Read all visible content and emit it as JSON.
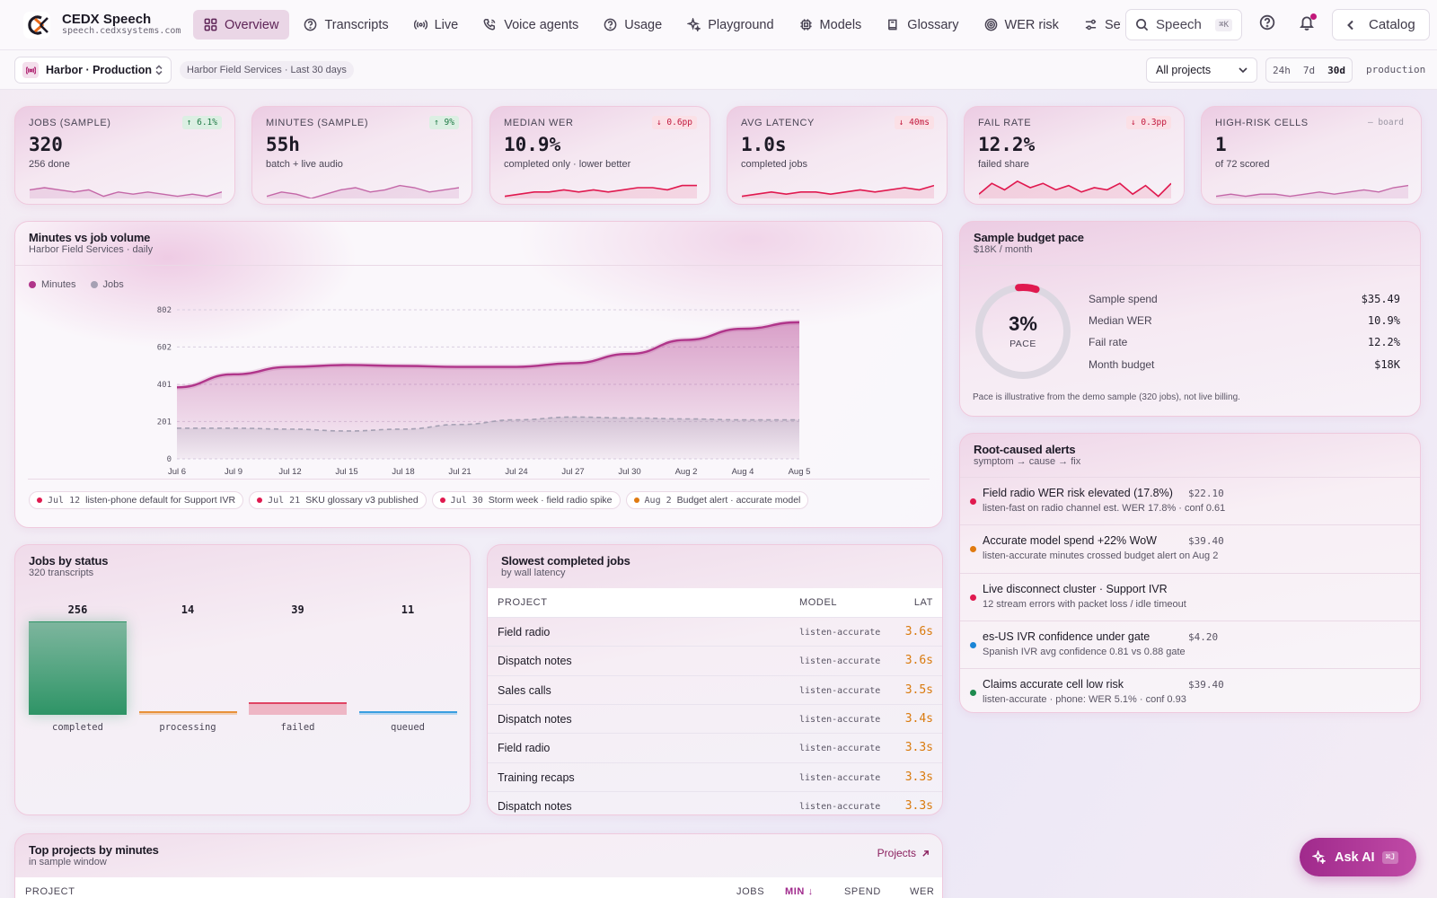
{
  "app": {
    "title": "CEDX Speech",
    "domain": "speech.cedxsystems.com"
  },
  "nav": {
    "tabs": [
      {
        "label": "Overview",
        "icon": "grid-icon",
        "active": true
      },
      {
        "label": "Transcripts",
        "icon": "question-circle-icon"
      },
      {
        "label": "Live",
        "icon": "broadcast-icon"
      },
      {
        "label": "Voice agents",
        "icon": "phone-icon"
      },
      {
        "label": "Usage",
        "icon": "question-circle-icon"
      },
      {
        "label": "Playground",
        "icon": "sparkle-icon"
      },
      {
        "label": "Models",
        "icon": "chip-icon"
      },
      {
        "label": "Glossary",
        "icon": "book-icon"
      },
      {
        "label": "WER risk",
        "icon": "target-icon"
      },
      {
        "label": "Settings",
        "icon": "sliders-icon"
      }
    ],
    "search": {
      "label": "Speech",
      "shortcut": "⌘K"
    },
    "catalog_label": "Catalog"
  },
  "subbar": {
    "org": "Harbor · Production",
    "scope": "Harbor Field Services · Last 30 days",
    "project_select": "All projects",
    "ranges": [
      "24h",
      "7d",
      "30d"
    ],
    "selected_range": "30d",
    "env": "production"
  },
  "kpis": [
    {
      "label": "Jobs (sample)",
      "value": "320",
      "sub": "256 done",
      "delta": "↑ 6.1%",
      "tone": "green"
    },
    {
      "label": "Minutes (sample)",
      "value": "55h",
      "sub": "batch + live audio",
      "delta": "↑ 9%",
      "tone": "green"
    },
    {
      "label": "Median WER",
      "value": "10.9%",
      "sub": "completed only · lower better",
      "delta": "↓ 0.6pp",
      "tone": "red"
    },
    {
      "label": "Avg latency",
      "value": "1.0s",
      "sub": "completed jobs",
      "delta": "↓ 40ms",
      "tone": "red"
    },
    {
      "label": "Fail rate",
      "value": "12.2%",
      "sub": "failed share",
      "delta": "↓ 0.3pp",
      "tone": "red"
    },
    {
      "label": "High-risk cells",
      "value": "1",
      "sub": "of 72 scored",
      "delta": "— board",
      "tone": "gray"
    }
  ],
  "minutes_chart": {
    "title": "Minutes vs job volume",
    "subtitle": "Harbor Field Services · daily",
    "legend": [
      "Minutes",
      "Jobs"
    ],
    "colors": {
      "minutes": "#b0358a",
      "jobs": "#a5a0b3"
    },
    "chart_data": {
      "type": "area",
      "x": [
        "Jul 6",
        "Jul 9",
        "Jul 12",
        "Jul 15",
        "Jul 18",
        "Jul 21",
        "Jul 24",
        "Jul 27",
        "Jul 30",
        "Aug 2",
        "Aug 4",
        "Aug 5"
      ],
      "y_ticks": [
        "0",
        "201",
        "401",
        "602",
        "802"
      ],
      "ylim": [
        0,
        802
      ],
      "series": [
        {
          "name": "Minutes",
          "values": [
            385,
            455,
            495,
            505,
            500,
            495,
            495,
            515,
            565,
            640,
            700,
            735
          ]
        },
        {
          "name": "Jobs",
          "values": [
            165,
            165,
            160,
            150,
            160,
            185,
            210,
            225,
            220,
            215,
            210,
            210
          ]
        }
      ]
    },
    "events": [
      {
        "date": "Jul 12",
        "text": "listen-phone default for Support IVR",
        "color": "#e0194f"
      },
      {
        "date": "Jul 21",
        "text": "SKU glossary v3 published",
        "color": "#e0194f"
      },
      {
        "date": "Jul 30",
        "text": "Storm week · field radio spike",
        "color": "#e0194f"
      },
      {
        "date": "Aug 2",
        "text": "Budget alert · accurate model",
        "color": "#e07a10"
      }
    ]
  },
  "budget": {
    "title": "Sample budget pace",
    "subtitle": "$18K / month",
    "pace_value": "3%",
    "pace_label": "PACE",
    "pace_fraction": 0.03,
    "rows": [
      {
        "label": "Sample spend",
        "value": "$35.49"
      },
      {
        "label": "Median WER",
        "value": "10.9%"
      },
      {
        "label": "Fail rate",
        "value": "12.2%"
      },
      {
        "label": "Month budget",
        "value": "$18K"
      }
    ],
    "note": "Pace is illustrative from the demo sample (320 jobs), not live billing."
  },
  "alerts": {
    "title": "Root-caused alerts",
    "subtitle": "symptom → cause → fix",
    "items": [
      {
        "title": "Field radio WER risk elevated (17.8%)",
        "cost": "$22.10",
        "sub": "listen-fast on radio channel est. WER 17.8% · conf 0.61",
        "color": "#e0194f"
      },
      {
        "title": "Accurate model spend +22% WoW",
        "cost": "$39.40",
        "sub": "listen-accurate minutes crossed budget alert on Aug 2",
        "color": "#e07a10"
      },
      {
        "title": "Live disconnect cluster · Support IVR",
        "cost": "",
        "sub": "12 stream errors with packet loss / idle timeout",
        "color": "#e0194f"
      },
      {
        "title": "es-US IVR confidence under gate",
        "cost": "$4.20",
        "sub": "Spanish IVR avg confidence 0.81 vs 0.88 gate",
        "color": "#1a85d6"
      },
      {
        "title": "Claims accurate cell low risk",
        "cost": "$39.40",
        "sub": "listen-accurate · phone: WER 5.1% · conf 0.93",
        "color": "#1e8a4f"
      }
    ]
  },
  "status": {
    "title": "Jobs by status",
    "subtitle": "320 transcripts",
    "chart_data": {
      "type": "bar",
      "categories": [
        "completed",
        "processing",
        "failed",
        "queued"
      ],
      "values": [
        256,
        14,
        39,
        11
      ],
      "colors": [
        "#2e9466",
        "#e8913a",
        "#e04464",
        "#3a9ee0"
      ]
    }
  },
  "slowest": {
    "title": "Slowest completed jobs",
    "subtitle": "by wall latency",
    "columns": [
      "PROJECT",
      "MODEL",
      "LAT"
    ],
    "rows": [
      {
        "project": "Field radio",
        "model": "listen-accurate",
        "lat": "3.6s"
      },
      {
        "project": "Dispatch notes",
        "model": "listen-accurate",
        "lat": "3.6s"
      },
      {
        "project": "Sales calls",
        "model": "listen-accurate",
        "lat": "3.5s"
      },
      {
        "project": "Dispatch notes",
        "model": "listen-accurate",
        "lat": "3.4s"
      },
      {
        "project": "Field radio",
        "model": "listen-accurate",
        "lat": "3.3s"
      },
      {
        "project": "Training recaps",
        "model": "listen-accurate",
        "lat": "3.3s"
      },
      {
        "project": "Dispatch notes",
        "model": "listen-accurate",
        "lat": "3.3s"
      }
    ]
  },
  "top_projects": {
    "title": "Top projects by minutes",
    "subtitle": "in sample window",
    "link": "Projects",
    "columns": [
      "PROJECT",
      "JOBS",
      "MIN ↓",
      "SPEND",
      "WER"
    ]
  },
  "ask_ai": {
    "label": "Ask AI",
    "shortcut": "⌘J"
  }
}
